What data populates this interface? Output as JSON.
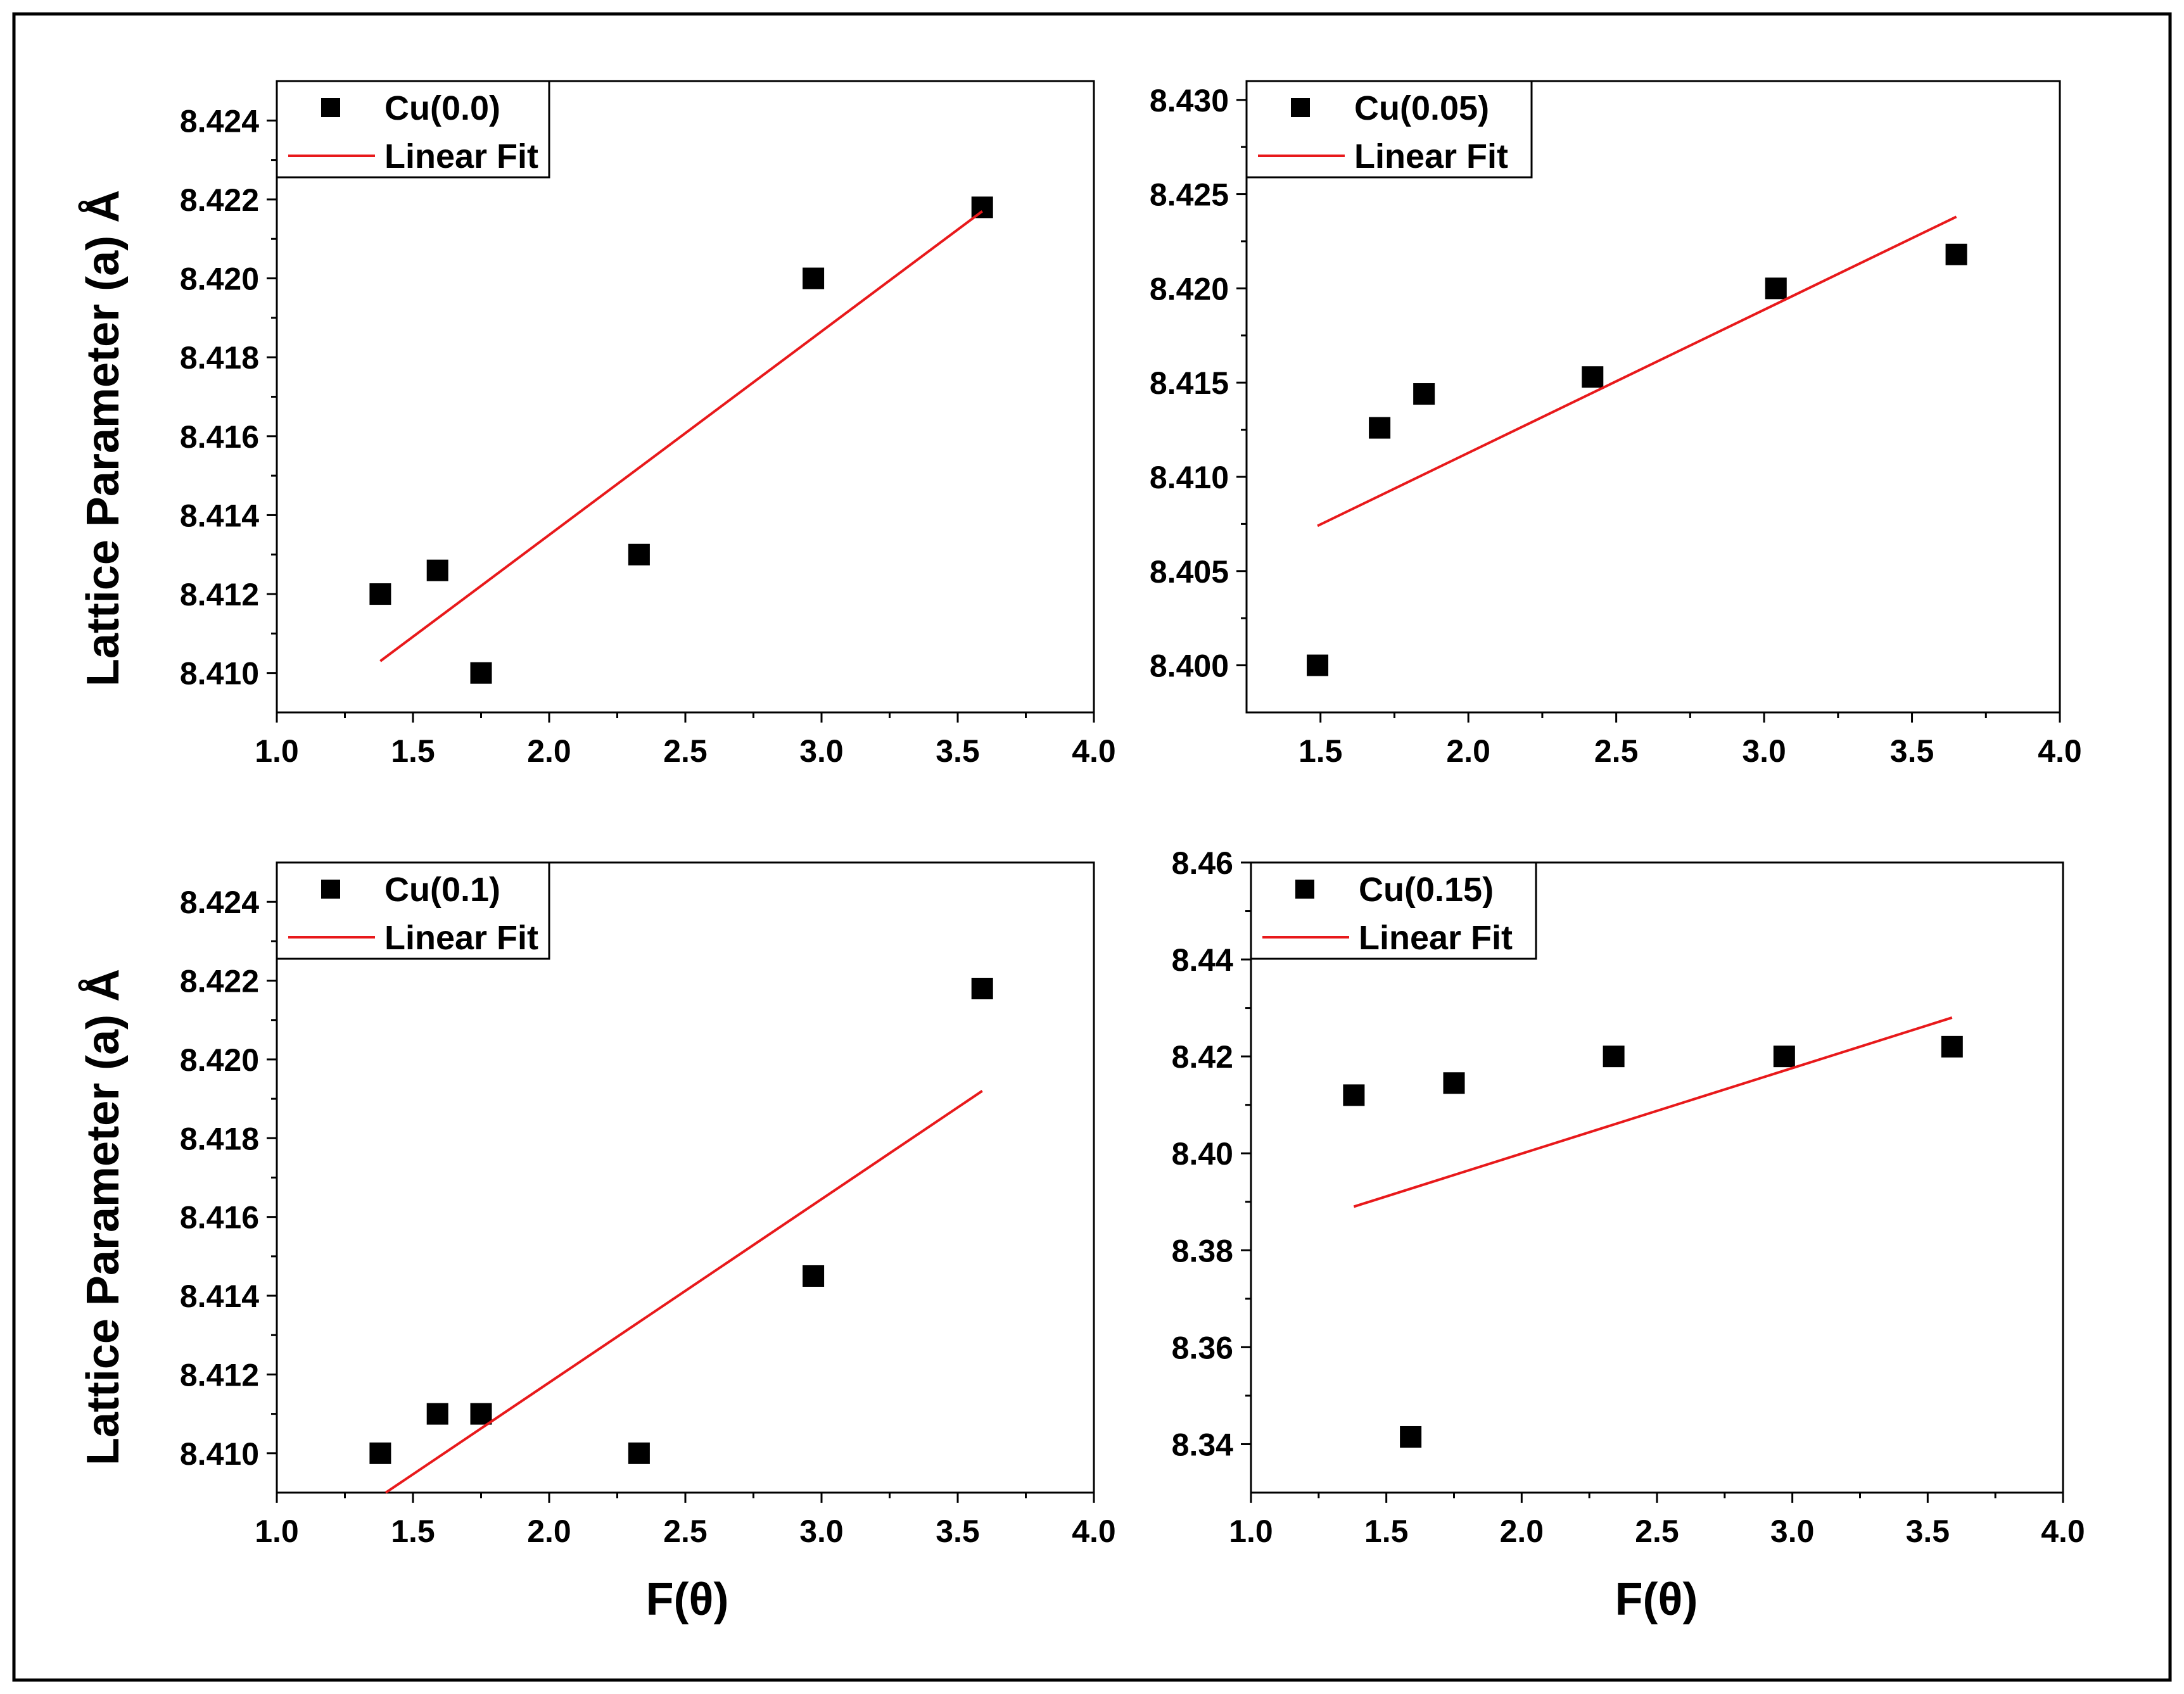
{
  "figure": {
    "xlabel": "F(θ)",
    "ylabel": "Lattice Parameter (a) Å",
    "marker_color": "#000000",
    "fit_color": "#e8191b"
  },
  "chart_data": [
    {
      "type": "scatter",
      "panel": "top-left",
      "legend_position": "top-left",
      "series": [
        {
          "name": "Cu(0.0)",
          "kind": "points",
          "x": [
            1.38,
            1.59,
            1.75,
            2.33,
            2.97,
            3.59
          ],
          "y": [
            8.412,
            8.4126,
            8.41,
            8.413,
            8.42,
            8.4218
          ]
        },
        {
          "name": "Linear Fit",
          "kind": "line",
          "x": [
            1.38,
            3.59
          ],
          "y": [
            8.4103,
            8.4217
          ]
        }
      ],
      "xlim": [
        1.0,
        4.0
      ],
      "ylim": [
        8.409,
        8.425
      ],
      "xticks": [
        "1.0",
        "1.5",
        "2.0",
        "2.5",
        "3.0",
        "3.5",
        "4.0"
      ],
      "yticks": [
        "8.410",
        "8.412",
        "8.414",
        "8.416",
        "8.418",
        "8.420",
        "8.422",
        "8.424"
      ]
    },
    {
      "type": "scatter",
      "panel": "top-right",
      "legend_position": "top-left",
      "series": [
        {
          "name": "Cu(0.05)",
          "kind": "points",
          "x": [
            1.49,
            1.7,
            1.85,
            2.42,
            3.04,
            3.65
          ],
          "y": [
            8.4,
            8.4126,
            8.4144,
            8.4153,
            8.42,
            8.4218
          ]
        },
        {
          "name": "Linear Fit",
          "kind": "line",
          "x": [
            1.49,
            3.65
          ],
          "y": [
            8.4074,
            8.4238
          ]
        }
      ],
      "xlim": [
        1.25,
        4.0
      ],
      "ylim": [
        8.3975,
        8.431
      ],
      "xticks": [
        "1.5",
        "2.0",
        "2.5",
        "3.0",
        "3.5",
        "4.0"
      ],
      "yticks": [
        "8.400",
        "8.405",
        "8.410",
        "8.415",
        "8.420",
        "8.425",
        "8.430"
      ]
    },
    {
      "type": "scatter",
      "panel": "bottom-left",
      "legend_position": "top-left",
      "series": [
        {
          "name": "Cu(0.1)",
          "kind": "points",
          "x": [
            1.38,
            1.59,
            1.75,
            2.33,
            2.97,
            3.59
          ],
          "y": [
            8.41,
            8.411,
            8.411,
            8.41,
            8.4145,
            8.4218
          ]
        },
        {
          "name": "Linear Fit",
          "kind": "line",
          "x": [
            1.4,
            3.59
          ],
          "y": [
            8.409,
            8.4192
          ]
        }
      ],
      "xlim": [
        1.0,
        4.0
      ],
      "ylim": [
        8.409,
        8.425
      ],
      "xticks": [
        "1.0",
        "1.5",
        "2.0",
        "2.5",
        "3.0",
        "3.5",
        "4.0"
      ],
      "yticks": [
        "8.410",
        "8.412",
        "8.414",
        "8.416",
        "8.418",
        "8.420",
        "8.422",
        "8.424"
      ]
    },
    {
      "type": "scatter",
      "panel": "bottom-right",
      "legend_position": "top-left",
      "series": [
        {
          "name": "Cu(0.15)",
          "kind": "points",
          "x": [
            1.38,
            1.59,
            1.75,
            2.34,
            2.97,
            3.59
          ],
          "y": [
            8.412,
            8.3415,
            8.4145,
            8.42,
            8.42,
            8.422
          ]
        },
        {
          "name": "Linear Fit",
          "kind": "line",
          "x": [
            1.38,
            3.59
          ],
          "y": [
            8.389,
            8.428
          ]
        }
      ],
      "xlim": [
        1.0,
        4.0
      ],
      "ylim": [
        8.33,
        8.46
      ],
      "xticks": [
        "1.0",
        "1.5",
        "2.0",
        "2.5",
        "3.0",
        "3.5",
        "4.0"
      ],
      "yticks": [
        "8.34",
        "8.36",
        "8.38",
        "8.40",
        "8.42",
        "8.44",
        "8.46"
      ]
    }
  ]
}
